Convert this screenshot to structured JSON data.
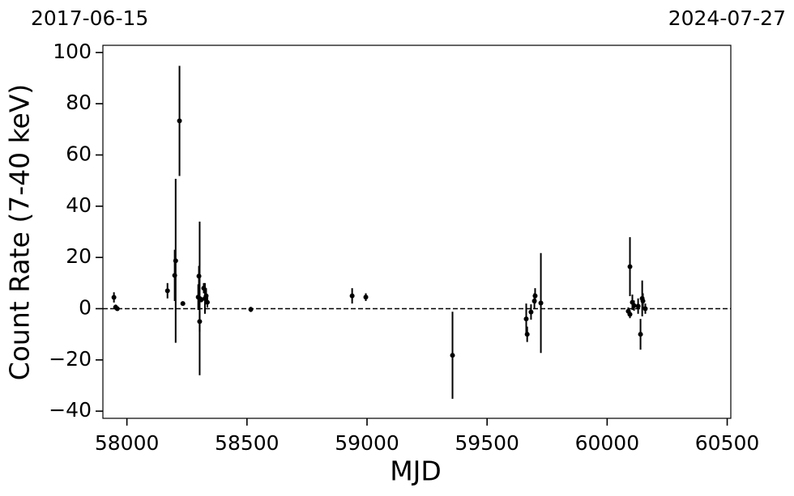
{
  "chart_data": {
    "type": "errorbar-scatter",
    "top_labels": [
      "2017-06-15",
      "2024-07-27"
    ],
    "xlabel": "MJD",
    "ylabel": "Count Rate (7-40 keV)",
    "xlim": [
      57900,
      60515
    ],
    "ylim": [
      -42.8,
      102.8
    ],
    "xticks": [
      58000,
      58500,
      59000,
      59500,
      60000,
      60500
    ],
    "yticks": [
      {
        "value": -40,
        "label": "−40"
      },
      {
        "value": -20,
        "label": "−20"
      },
      0,
      20,
      40,
      60,
      80,
      100
    ],
    "hline": 0,
    "series": [
      {
        "color": "#000000",
        "x": [
          57946,
          57953,
          57960,
          58169,
          58199,
          58203,
          58219,
          58233,
          58297,
          58300,
          58303,
          58303,
          58310,
          58320,
          58325,
          58330,
          58335,
          58516,
          58938,
          58995,
          59356,
          59663,
          59667,
          59683,
          59697,
          59700,
          59724,
          60088,
          60095,
          60095,
          60105,
          60112,
          60129,
          60139,
          60146,
          60149,
          60159
        ],
        "values": [
          4.4,
          0.6,
          0.0,
          7,
          13,
          18.7,
          73.3,
          2,
          4.5,
          12.7,
          4,
          -5,
          3.5,
          8,
          4,
          5,
          2.5,
          -0.3,
          5,
          4.5,
          -18.2,
          -4,
          -10,
          -1.3,
          3,
          5,
          2.2,
          -1,
          16.4,
          -2.2,
          2.5,
          1.2,
          1,
          -10,
          4,
          3,
          0
        ],
        "errors": [
          2,
          1,
          0.5,
          3,
          10,
          32,
          21.5,
          0.5,
          5,
          4,
          30,
          4,
          1,
          2,
          6,
          3,
          2,
          1,
          3,
          1.5,
          17,
          6,
          3,
          3,
          3,
          3,
          19.5,
          1.5,
          11.5,
          1.5,
          3,
          2,
          3,
          6,
          7,
          3,
          2
        ]
      }
    ]
  }
}
